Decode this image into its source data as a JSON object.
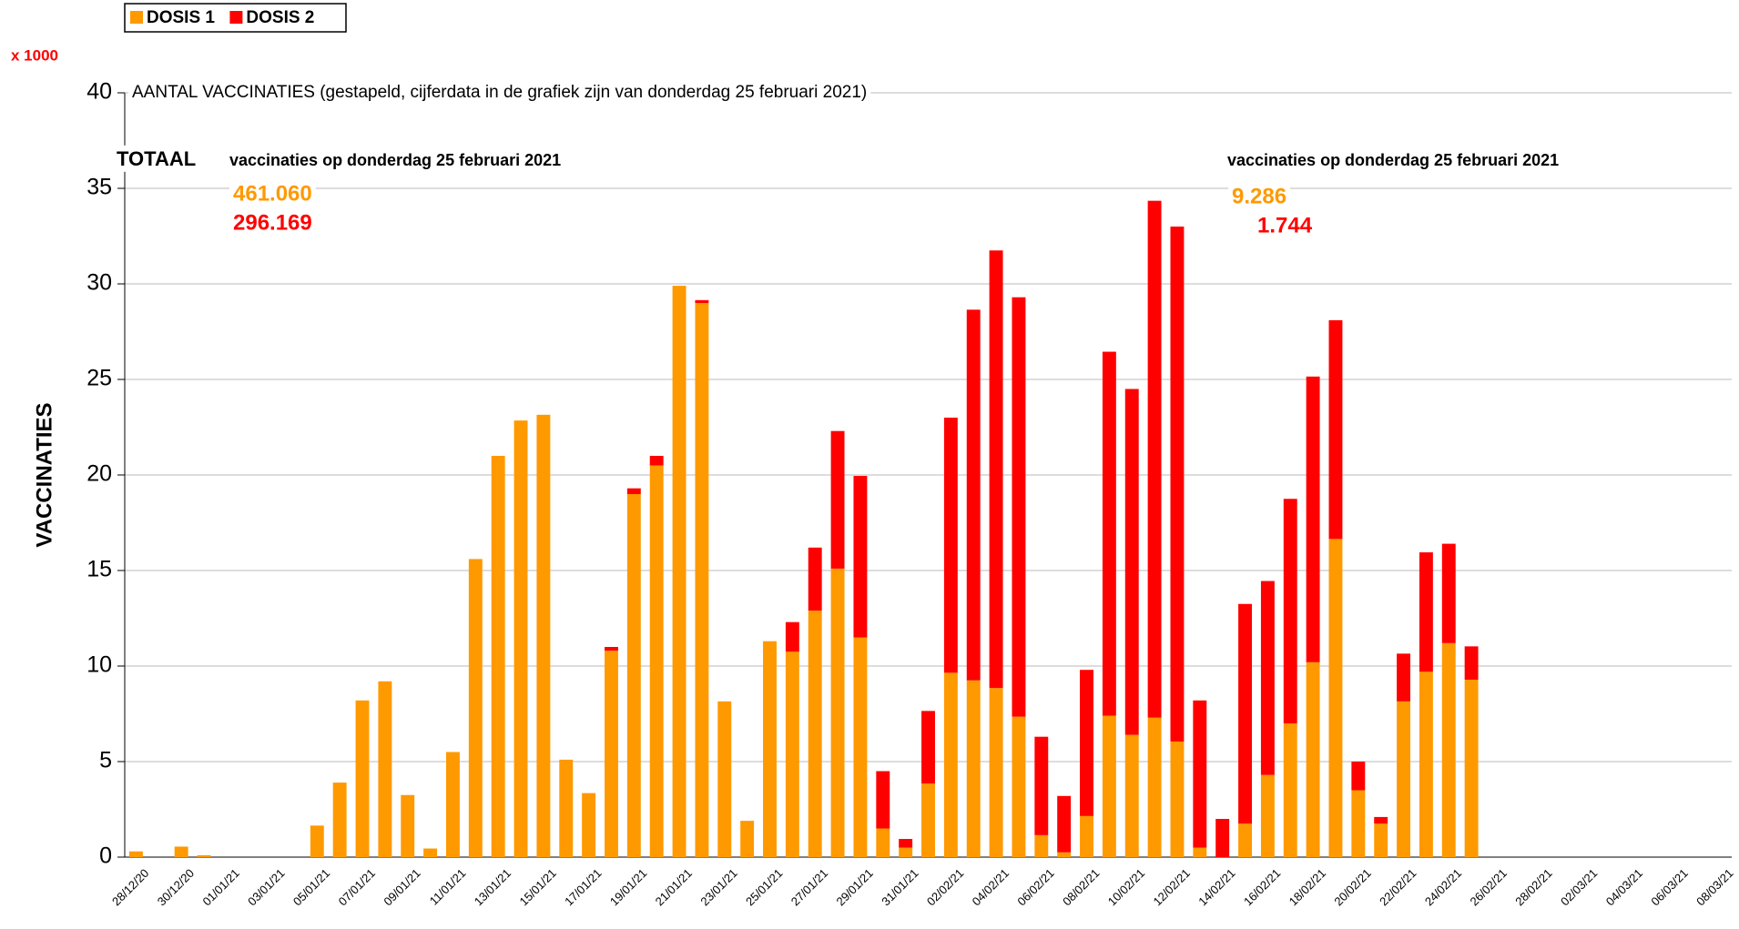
{
  "chart_data": {
    "type": "stacked-bar",
    "title": "AANTAL VACCINATIES (gestapeld, cijferdata in de grafiek zijn van donderdag 25 februari 2021)",
    "ylabel": "VACCINATIES",
    "unit_label": "x 1000",
    "categories": [
      "28/12/20",
      null,
      "30/12/20",
      null,
      "01/01/21",
      null,
      "03/01/21",
      null,
      "05/01/21",
      null,
      "07/01/21",
      null,
      "09/01/21",
      null,
      "11/01/21",
      null,
      "13/01/21",
      null,
      "15/01/21",
      null,
      "17/01/21",
      null,
      "19/01/21",
      null,
      "21/01/21",
      null,
      "23/01/21",
      null,
      "25/01/21",
      null,
      "27/01/21",
      null,
      "29/01/21",
      null,
      "31/01/21",
      null,
      "02/02/21",
      null,
      "04/02/21",
      null,
      "06/02/21",
      null,
      "08/02/21",
      null,
      "10/02/21",
      null,
      "12/02/21",
      null,
      "14/02/21",
      null,
      "16/02/21",
      null,
      "18/02/21",
      null,
      "20/02/21",
      null,
      "22/02/21",
      null,
      "24/02/21",
      null,
      "26/02/21",
      null,
      "28/02/21",
      null,
      "02/03/21",
      null,
      "04/03/21",
      null,
      "06/03/21",
      null,
      "08/03/21"
    ],
    "series": [
      {
        "name": "DOSIS 1",
        "color": "#ff9900",
        "values": [
          0.3,
          0,
          0.55,
          0.1,
          0,
          0,
          0,
          0,
          1.65,
          3.9,
          8.2,
          9.2,
          3.25,
          0.45,
          5.5,
          15.6,
          21.0,
          22.85,
          23.15,
          5.1,
          3.35,
          10.8,
          19.0,
          20.5,
          29.9,
          29.0,
          8.15,
          1.9,
          11.3,
          10.75,
          12.9,
          15.1,
          11.5,
          1.5,
          0.5,
          3.85,
          9.65,
          9.25,
          8.85,
          7.35,
          1.15,
          0.25,
          2.15,
          7.4,
          6.4,
          7.3,
          6.05,
          0.5,
          0,
          1.75,
          4.3,
          7.0,
          10.2,
          16.65,
          3.5,
          1.75,
          8.15,
          9.7,
          11.2,
          9.286,
          null,
          null,
          null,
          null,
          null,
          null,
          null,
          null,
          null,
          null,
          null
        ]
      },
      {
        "name": "DOSIS 2",
        "color": "#ff0000",
        "values": [
          0,
          0,
          0,
          0,
          0,
          0,
          0,
          0,
          0,
          0,
          0,
          0,
          0,
          0,
          0,
          0,
          0,
          0,
          0,
          0,
          0,
          0.2,
          0.3,
          0.5,
          0,
          0.15,
          0,
          0,
          0,
          1.55,
          3.3,
          7.2,
          8.45,
          3.0,
          0.45,
          3.8,
          13.35,
          19.4,
          22.9,
          21.95,
          5.15,
          2.95,
          7.65,
          19.05,
          18.1,
          27.05,
          26.95,
          7.7,
          2.0,
          11.5,
          10.15,
          11.75,
          14.95,
          11.45,
          1.5,
          0.35,
          2.5,
          6.25,
          5.2,
          1.744,
          null,
          null,
          null,
          null,
          null,
          null,
          null,
          null,
          null,
          null,
          null
        ]
      }
    ],
    "ylim": [
      0,
      40
    ],
    "yticks": [
      0,
      5,
      10,
      15,
      20,
      25,
      30,
      35,
      40
    ],
    "grid": true,
    "annotations": [
      {
        "text": "TOTAAL",
        "color": "#000000"
      },
      {
        "text": "vaccinaties op donderdag 25 februari 2021",
        "color": "#000000"
      },
      {
        "text": "461.060",
        "color": "#ff9900"
      },
      {
        "text": "296.169",
        "color": "#ff0000"
      },
      {
        "text": "vaccinaties op donderdag 25 februari 2021",
        "color": "#000000"
      },
      {
        "text": "9.286",
        "color": "#ff9900"
      },
      {
        "text": "1.744",
        "color": "#ff0000"
      }
    ]
  }
}
